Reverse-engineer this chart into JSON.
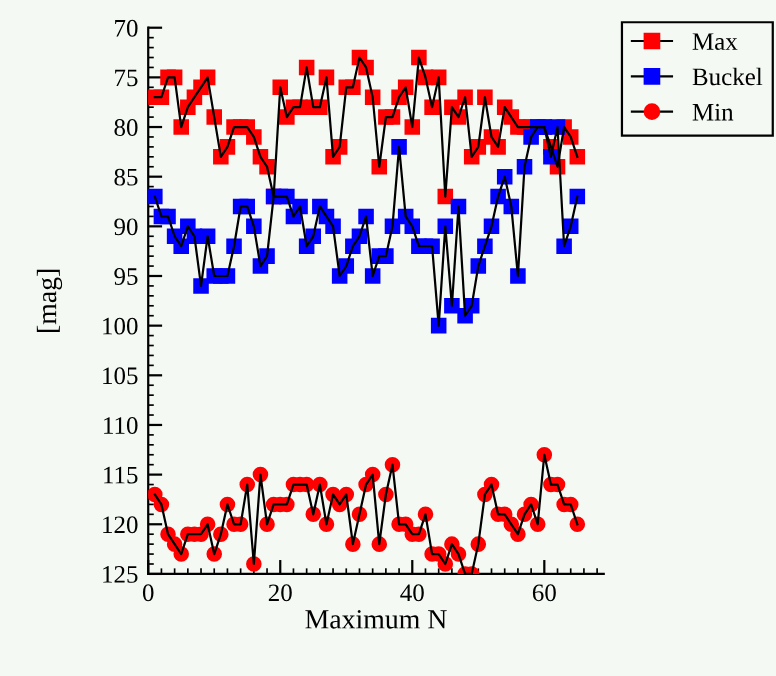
{
  "chart_data": {
    "type": "line",
    "xlabel": "Maximum N",
    "ylabel": "[mag]",
    "x": [
      1,
      2,
      3,
      4,
      5,
      6,
      7,
      8,
      9,
      10,
      11,
      12,
      13,
      14,
      15,
      16,
      17,
      18,
      19,
      20,
      21,
      22,
      23,
      24,
      25,
      26,
      27,
      28,
      29,
      30,
      31,
      32,
      33,
      34,
      35,
      36,
      37,
      38,
      39,
      40,
      41,
      42,
      43,
      44,
      45,
      46,
      47,
      48,
      49,
      50,
      51,
      52,
      53,
      54,
      55,
      56,
      57,
      58,
      59,
      60,
      61,
      62,
      63,
      64,
      65
    ],
    "series": [
      {
        "name": "Max",
        "color": "#ff0000",
        "marker": "square",
        "values": [
          77,
          77,
          75,
          75,
          80,
          78,
          77,
          76,
          75,
          79,
          83,
          82,
          80,
          80,
          80,
          81,
          83,
          84,
          87,
          76,
          79,
          78,
          78,
          74,
          78,
          78,
          75,
          83,
          82,
          76,
          76,
          73,
          74,
          77,
          84,
          79,
          79,
          77,
          76,
          80,
          73,
          75,
          78,
          75,
          87,
          78,
          79,
          77,
          83,
          82,
          77,
          81,
          82,
          78,
          79,
          80,
          80,
          80,
          80,
          80,
          82,
          84,
          80,
          81,
          83
        ]
      },
      {
        "name": "Buckel",
        "color": "#0000ff",
        "marker": "square",
        "values": [
          87,
          89,
          89,
          91,
          92,
          90,
          91,
          96,
          91,
          95,
          95,
          95,
          92,
          88,
          88,
          90,
          94,
          93,
          87,
          87,
          87,
          89,
          88,
          92,
          91,
          88,
          89,
          90,
          95,
          94,
          92,
          91,
          89,
          95,
          93,
          93,
          90,
          82,
          89,
          90,
          92,
          92,
          92,
          100,
          90,
          98,
          88,
          99,
          98,
          94,
          92,
          90,
          87,
          85,
          88,
          95,
          84,
          81,
          80,
          80,
          83,
          80,
          92,
          90,
          87
        ]
      },
      {
        "name": "Min",
        "color": "#ff0000",
        "marker": "circle",
        "values": [
          117,
          118,
          121,
          122,
          123,
          121,
          121,
          121,
          120,
          123,
          121,
          118,
          120,
          120,
          116,
          124,
          115,
          120,
          118,
          118,
          118,
          116,
          116,
          116,
          119,
          116,
          120,
          117,
          118,
          117,
          122,
          119,
          116,
          115,
          122,
          117,
          114,
          120,
          120,
          121,
          121,
          119,
          123,
          123,
          124,
          122,
          123,
          125,
          125,
          122,
          117,
          116,
          119,
          119,
          120,
          121,
          119,
          118,
          120,
          113,
          116,
          116,
          118,
          118,
          120
        ]
      }
    ],
    "xlim": [
      0,
      69
    ],
    "xticks": [
      0,
      20,
      40,
      60
    ],
    "ylim": [
      125,
      70
    ],
    "yticks": [
      70,
      75,
      80,
      85,
      90,
      95,
      100,
      105,
      110,
      115,
      120,
      125
    ],
    "grid": false,
    "legend": "top right",
    "line_style": "solid"
  }
}
